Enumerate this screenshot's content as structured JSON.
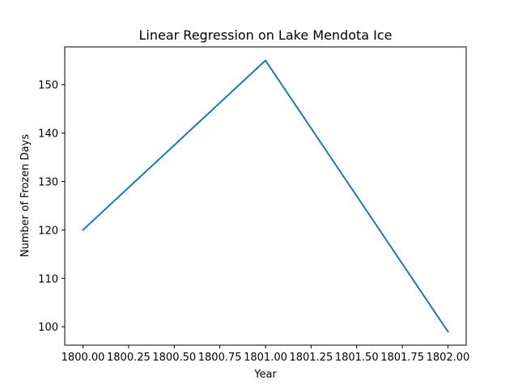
{
  "chart_data": {
    "type": "line",
    "title": "Linear Regression on Lake Mendota Ice",
    "xlabel": "Year",
    "ylabel": "Number of Frozen Days",
    "series": [
      {
        "x": [
          1800.0,
          1801.0,
          1802.0
        ],
        "y": [
          120,
          155,
          99
        ]
      }
    ],
    "xlim": [
      1799.9,
      1802.1
    ],
    "ylim": [
      96.2,
      157.8
    ],
    "xticks": [
      1800.0,
      1800.25,
      1800.5,
      1800.75,
      1801.0,
      1801.25,
      1801.5,
      1801.75,
      1802.0
    ],
    "xtick_labels": [
      "1800.00",
      "1800.25",
      "1800.50",
      "1800.75",
      "1801.00",
      "1801.25",
      "1801.50",
      "1801.75",
      "1802.00"
    ],
    "yticks": [
      100,
      110,
      120,
      130,
      140,
      150
    ],
    "ytick_labels": [
      "100",
      "110",
      "120",
      "130",
      "140",
      "150"
    ],
    "grid": false,
    "line_color": "#1f77b4"
  }
}
